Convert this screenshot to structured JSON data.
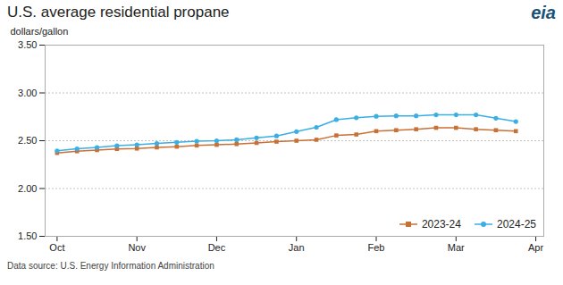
{
  "chart_data": {
    "type": "line",
    "title": "U.S. average residential propane",
    "ylabel": "dollars/gallon",
    "caption": "Data source: U.S. Energy Information Administration",
    "annotations": [
      "eia"
    ],
    "x": [
      0,
      0.5,
      1,
      1.5,
      2,
      2.5,
      3,
      3.5,
      4,
      4.5,
      5,
      5.5,
      6,
      6.5,
      7,
      7.5,
      8,
      8.5,
      9,
      9.5,
      10,
      10.5,
      11,
      11.5
    ],
    "xlim": [
      -0.3,
      12.2
    ],
    "xticks": [
      {
        "value": 0,
        "label": "Oct"
      },
      {
        "value": 2,
        "label": "Nov"
      },
      {
        "value": 4,
        "label": "Dec"
      },
      {
        "value": 6,
        "label": "Jan"
      },
      {
        "value": 8,
        "label": "Feb"
      },
      {
        "value": 10,
        "label": "Mar"
      },
      {
        "value": 12,
        "label": "Apr"
      }
    ],
    "ylim": [
      1.5,
      3.5
    ],
    "yticks": [
      {
        "value": 1.5,
        "label": "1.50"
      },
      {
        "value": 2,
        "label": "2.00"
      },
      {
        "value": 2.5,
        "label": "2.50"
      },
      {
        "value": 3,
        "label": "3.00"
      },
      {
        "value": 3.5,
        "label": "3.50"
      }
    ],
    "grid": true,
    "legend": "lower right",
    "series": [
      {
        "name": "2023-24",
        "color": "#C87137",
        "marker": "square",
        "values": [
          2.372,
          2.39,
          2.402,
          2.414,
          2.418,
          2.43,
          2.438,
          2.45,
          2.457,
          2.465,
          2.477,
          2.49,
          2.5,
          2.51,
          2.555,
          2.565,
          2.6,
          2.61,
          2.62,
          2.635,
          2.635,
          2.62,
          2.61,
          2.6
        ]
      },
      {
        "name": "2024-25",
        "color": "#3AAFE4",
        "marker": "circle",
        "values": [
          2.395,
          2.415,
          2.43,
          2.448,
          2.458,
          2.472,
          2.483,
          2.495,
          2.5,
          2.51,
          2.53,
          2.55,
          2.595,
          2.64,
          2.72,
          2.74,
          2.755,
          2.76,
          2.76,
          2.77,
          2.77,
          2.77,
          2.735,
          2.7
        ]
      }
    ]
  }
}
